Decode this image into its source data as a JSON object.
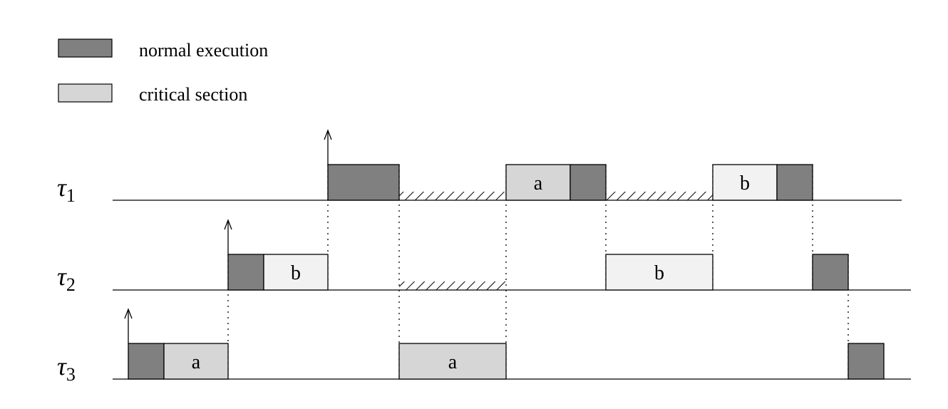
{
  "colors": {
    "normal": "#808080",
    "critical_light": "#f2f2f2",
    "critical_dark": "#d6d6d6",
    "line": "#000000"
  },
  "legend": {
    "normal_label": "normal execution",
    "critical_label": "critical section"
  },
  "tasks": [
    {
      "symbol": "τ",
      "index": "1",
      "arrival": 0,
      "blocks": [
        {
          "kind": "normal",
          "start": 0,
          "end": 1,
          "label": ""
        },
        {
          "kind": "critical_dark",
          "start": 2.5,
          "end": 3.4,
          "label": "a"
        },
        {
          "kind": "normal",
          "start": 3.4,
          "end": 3.9,
          "label": ""
        },
        {
          "kind": "critical_light",
          "start": 5.4,
          "end": 6.3,
          "label": "b"
        },
        {
          "kind": "normal",
          "start": 6.3,
          "end": 6.8,
          "label": ""
        }
      ],
      "blocked": [
        {
          "start": 1,
          "end": 2.5
        },
        {
          "start": 3.9,
          "end": 5.4
        }
      ]
    },
    {
      "symbol": "τ",
      "index": "2",
      "arrival": -1.4,
      "blocks": [
        {
          "kind": "normal",
          "start": -1.4,
          "end": -0.9,
          "label": ""
        },
        {
          "kind": "critical_light",
          "start": -0.9,
          "end": 0,
          "label": "b"
        },
        {
          "kind": "critical_light",
          "start": 3.9,
          "end": 5.4,
          "label": "b"
        },
        {
          "kind": "normal",
          "start": 6.8,
          "end": 7.3,
          "label": ""
        }
      ],
      "blocked": [
        {
          "start": 1,
          "end": 2.5
        }
      ]
    },
    {
      "symbol": "τ",
      "index": "3",
      "arrival": -2.8,
      "blocks": [
        {
          "kind": "normal",
          "start": -2.8,
          "end": -2.3,
          "label": ""
        },
        {
          "kind": "critical_dark",
          "start": -2.3,
          "end": -1.4,
          "label": "a"
        },
        {
          "kind": "critical_dark",
          "start": 1,
          "end": 2.5,
          "label": "a"
        },
        {
          "kind": "normal",
          "start": 7.3,
          "end": 7.8,
          "label": ""
        }
      ],
      "blocked": []
    }
  ],
  "sync_marks": [
    {
      "t": 0,
      "from_task": 1,
      "to_task": 2
    },
    {
      "t": -1.4,
      "from_task": 2,
      "to_task": 3
    },
    {
      "t": 1,
      "from_task": 1,
      "to_task": 3
    },
    {
      "t": 2.5,
      "from_task": 1,
      "to_task": 3
    },
    {
      "t": 3.9,
      "from_task": 1,
      "to_task": 2
    },
    {
      "t": 5.4,
      "from_task": 1,
      "to_task": 2
    },
    {
      "t": 6.8,
      "from_task": 1,
      "to_task": 2
    },
    {
      "t": 7.3,
      "from_task": 2,
      "to_task": 3
    }
  ]
}
